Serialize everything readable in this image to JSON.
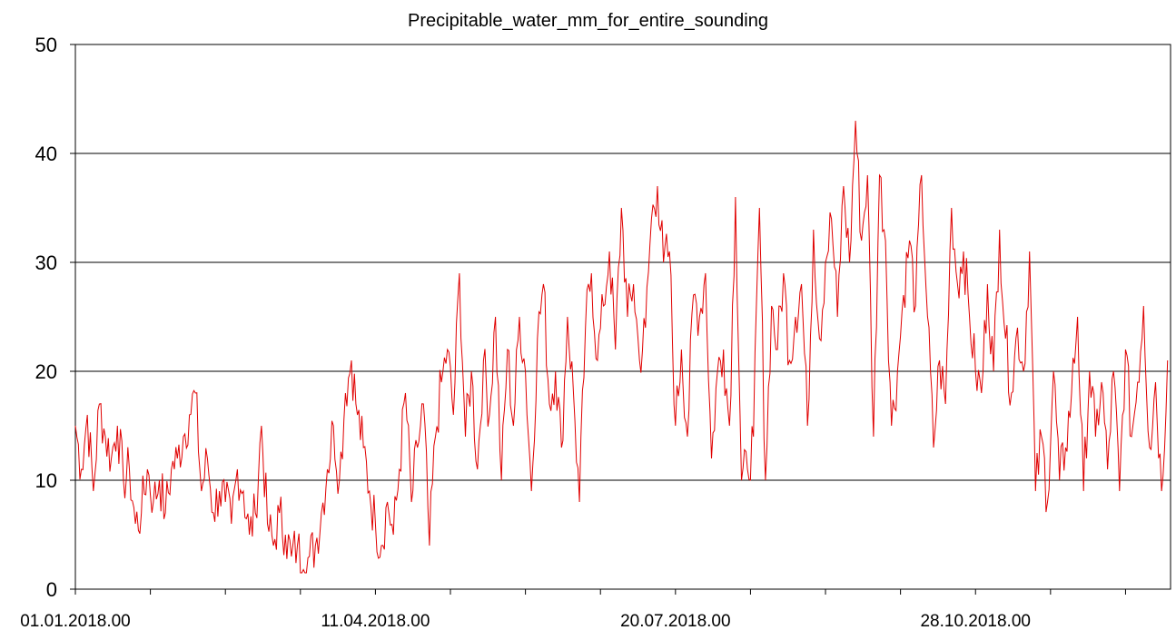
{
  "chart_data": {
    "type": "line",
    "title": "Precipitable_water_mm_for_entire_sounding",
    "xlabel": "",
    "ylabel": "",
    "ylim": [
      0,
      50
    ],
    "yticks": [
      "0",
      "10",
      "20",
      "30",
      "40",
      "50"
    ],
    "x_start": "01.01.2018.00",
    "x_end": "31.12.2018.12",
    "xtick_labels": [
      "01.01.2018.00",
      "11.04.2018.00",
      "20.07.2018.00",
      "28.10.2018.00"
    ],
    "grid": "horizontal",
    "legend": "none",
    "line_color": "#e00000",
    "series": [
      {
        "values": [
          [
            0,
            15
          ],
          [
            2,
            11
          ],
          [
            4,
            16
          ],
          [
            6,
            9
          ],
          [
            8,
            17
          ],
          [
            10,
            14
          ],
          [
            12,
            12
          ],
          [
            14,
            15
          ],
          [
            16,
            10
          ],
          [
            18,
            11
          ],
          [
            20,
            6
          ],
          [
            22,
            7
          ],
          [
            24,
            11
          ],
          [
            26,
            8
          ],
          [
            28,
            10
          ],
          [
            30,
            7
          ],
          [
            32,
            11
          ],
          [
            34,
            12
          ],
          [
            36,
            14
          ],
          [
            38,
            16
          ],
          [
            40,
            18
          ],
          [
            42,
            9
          ],
          [
            44,
            12
          ],
          [
            46,
            7
          ],
          [
            48,
            9
          ],
          [
            50,
            8
          ],
          [
            52,
            6
          ],
          [
            54,
            11
          ],
          [
            56,
            9
          ],
          [
            58,
            5
          ],
          [
            60,
            7
          ],
          [
            62,
            15
          ],
          [
            64,
            6
          ],
          [
            66,
            4
          ],
          [
            68,
            7
          ],
          [
            70,
            5
          ],
          [
            72,
            3
          ],
          [
            74,
            4
          ],
          [
            76,
            1.8
          ],
          [
            78,
            3
          ],
          [
            80,
            4
          ],
          [
            82,
            7
          ],
          [
            84,
            11
          ],
          [
            86,
            15
          ],
          [
            88,
            10
          ],
          [
            90,
            18
          ],
          [
            92,
            21
          ],
          [
            94,
            16
          ],
          [
            96,
            13
          ],
          [
            98,
            9
          ],
          [
            100,
            6
          ],
          [
            102,
            4
          ],
          [
            104,
            8
          ],
          [
            106,
            5
          ],
          [
            108,
            11
          ],
          [
            110,
            18
          ],
          [
            112,
            8
          ],
          [
            114,
            13
          ],
          [
            116,
            17
          ],
          [
            118,
            4
          ],
          [
            120,
            14
          ],
          [
            122,
            19
          ],
          [
            124,
            22
          ],
          [
            126,
            16
          ],
          [
            128,
            29
          ],
          [
            130,
            14
          ],
          [
            132,
            20
          ],
          [
            134,
            11
          ],
          [
            136,
            21
          ],
          [
            138,
            16
          ],
          [
            140,
            25
          ],
          [
            142,
            10
          ],
          [
            144,
            22
          ],
          [
            146,
            15
          ],
          [
            148,
            25
          ],
          [
            150,
            20
          ],
          [
            152,
            9
          ],
          [
            154,
            23
          ],
          [
            156,
            28
          ],
          [
            158,
            17
          ],
          [
            160,
            20
          ],
          [
            162,
            13
          ],
          [
            164,
            25
          ],
          [
            166,
            18
          ],
          [
            168,
            8
          ],
          [
            170,
            24
          ],
          [
            172,
            29
          ],
          [
            174,
            21
          ],
          [
            176,
            26
          ],
          [
            178,
            31
          ],
          [
            180,
            22
          ],
          [
            182,
            35
          ],
          [
            184,
            25
          ],
          [
            186,
            28
          ],
          [
            188,
            21
          ],
          [
            190,
            24
          ],
          [
            192,
            34
          ],
          [
            194,
            37
          ],
          [
            196,
            30
          ],
          [
            198,
            31
          ],
          [
            200,
            15
          ],
          [
            202,
            22
          ],
          [
            204,
            14
          ],
          [
            206,
            27
          ],
          [
            208,
            25
          ],
          [
            210,
            29
          ],
          [
            212,
            12
          ],
          [
            214,
            20
          ],
          [
            216,
            22
          ],
          [
            218,
            15
          ],
          [
            220,
            36
          ],
          [
            222,
            10
          ],
          [
            224,
            11
          ],
          [
            226,
            14
          ],
          [
            228,
            35
          ],
          [
            230,
            10
          ],
          [
            232,
            26
          ],
          [
            234,
            22
          ],
          [
            236,
            29
          ],
          [
            238,
            21
          ],
          [
            240,
            25
          ],
          [
            242,
            28
          ],
          [
            244,
            15
          ],
          [
            246,
            33
          ],
          [
            248,
            23
          ],
          [
            250,
            30
          ],
          [
            252,
            34
          ],
          [
            254,
            25
          ],
          [
            256,
            37
          ],
          [
            258,
            30
          ],
          [
            260,
            43
          ],
          [
            262,
            32
          ],
          [
            264,
            38
          ],
          [
            266,
            14
          ],
          [
            268,
            38
          ],
          [
            270,
            32
          ],
          [
            272,
            15
          ],
          [
            274,
            20
          ],
          [
            276,
            27
          ],
          [
            278,
            32
          ],
          [
            280,
            26
          ],
          [
            282,
            38
          ],
          [
            284,
            25
          ],
          [
            286,
            13
          ],
          [
            288,
            21
          ],
          [
            290,
            17
          ],
          [
            292,
            35
          ],
          [
            294,
            28
          ],
          [
            296,
            31
          ],
          [
            298,
            25
          ],
          [
            300,
            20
          ],
          [
            302,
            18
          ],
          [
            304,
            28
          ],
          [
            306,
            20
          ],
          [
            308,
            33
          ],
          [
            310,
            23
          ],
          [
            312,
            18
          ],
          [
            314,
            24
          ],
          [
            316,
            20
          ],
          [
            318,
            31
          ],
          [
            320,
            9
          ],
          [
            322,
            14
          ],
          [
            324,
            8
          ],
          [
            326,
            20
          ],
          [
            328,
            10
          ],
          [
            330,
            13
          ],
          [
            332,
            18
          ],
          [
            334,
            25
          ],
          [
            336,
            9
          ],
          [
            338,
            20
          ],
          [
            340,
            14
          ],
          [
            342,
            19
          ],
          [
            344,
            11
          ],
          [
            346,
            20
          ],
          [
            348,
            9
          ],
          [
            350,
            22
          ],
          [
            352,
            14
          ],
          [
            354,
            19
          ],
          [
            356,
            26
          ],
          [
            358,
            13
          ],
          [
            360,
            19
          ],
          [
            362,
            9
          ],
          [
            364,
            21
          ]
        ]
      }
    ]
  }
}
